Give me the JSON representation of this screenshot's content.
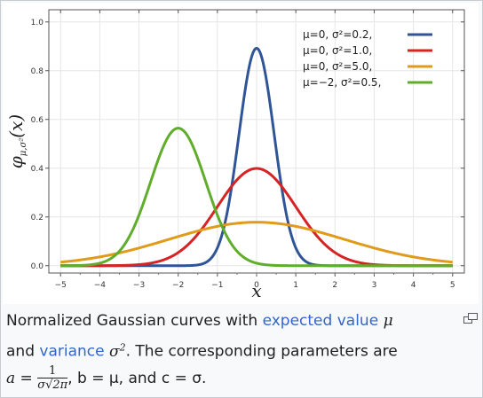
{
  "chart_data": {
    "type": "line",
    "xlabel": "x",
    "ylabel": "φμ,σ²(x)",
    "ylabel_main": "φ",
    "ylabel_sub": "μ,σ²",
    "ylabel_arg": "(x)",
    "xlim": [
      -5.3,
      5.3
    ],
    "ylim": [
      -0.03,
      1.05
    ],
    "x_ticks": [
      -5,
      -4,
      -3,
      -2,
      -1,
      0,
      1,
      2,
      3,
      4,
      5
    ],
    "x_tick_labels": [
      "−5",
      "−4",
      "−3",
      "−2",
      "−1",
      "0",
      "1",
      "2",
      "3",
      "4",
      "5"
    ],
    "y_ticks": [
      0.0,
      0.2,
      0.4,
      0.6,
      0.8,
      1.0
    ],
    "y_tick_labels": [
      "0.0",
      "0.2",
      "0.4",
      "0.6",
      "0.8",
      "1.0"
    ],
    "grid": true,
    "legend_position": "top-right",
    "series": [
      {
        "name": "μ=0,   σ²=0.2,",
        "mu": 0,
        "variance": 0.2,
        "color": "#2f5597"
      },
      {
        "name": "μ=0,   σ²=1.0,",
        "mu": 0,
        "variance": 1.0,
        "color": "#d62424"
      },
      {
        "name": "μ=0,   σ²=5.0,",
        "mu": 0,
        "variance": 5.0,
        "color": "#e09b1a"
      },
      {
        "name": "μ=−2, σ²=0.5,",
        "mu": -2,
        "variance": 0.5,
        "color": "#5fad2a"
      }
    ]
  },
  "caption": {
    "part1": "Normalized Gaussian curves with ",
    "link1": "expected value",
    "mu_symbol": "μ",
    "part2": "and ",
    "link2": "variance",
    "sigma2_symbol": "σ",
    "sigma2_exp": "2",
    "part3": ". The corresponding parameters are",
    "a_label": "a =",
    "frac_num": "1",
    "frac_den": "σ√2π",
    "part4": ", b = μ, and c = σ."
  },
  "enlarge_icon": "enlarge-icon"
}
